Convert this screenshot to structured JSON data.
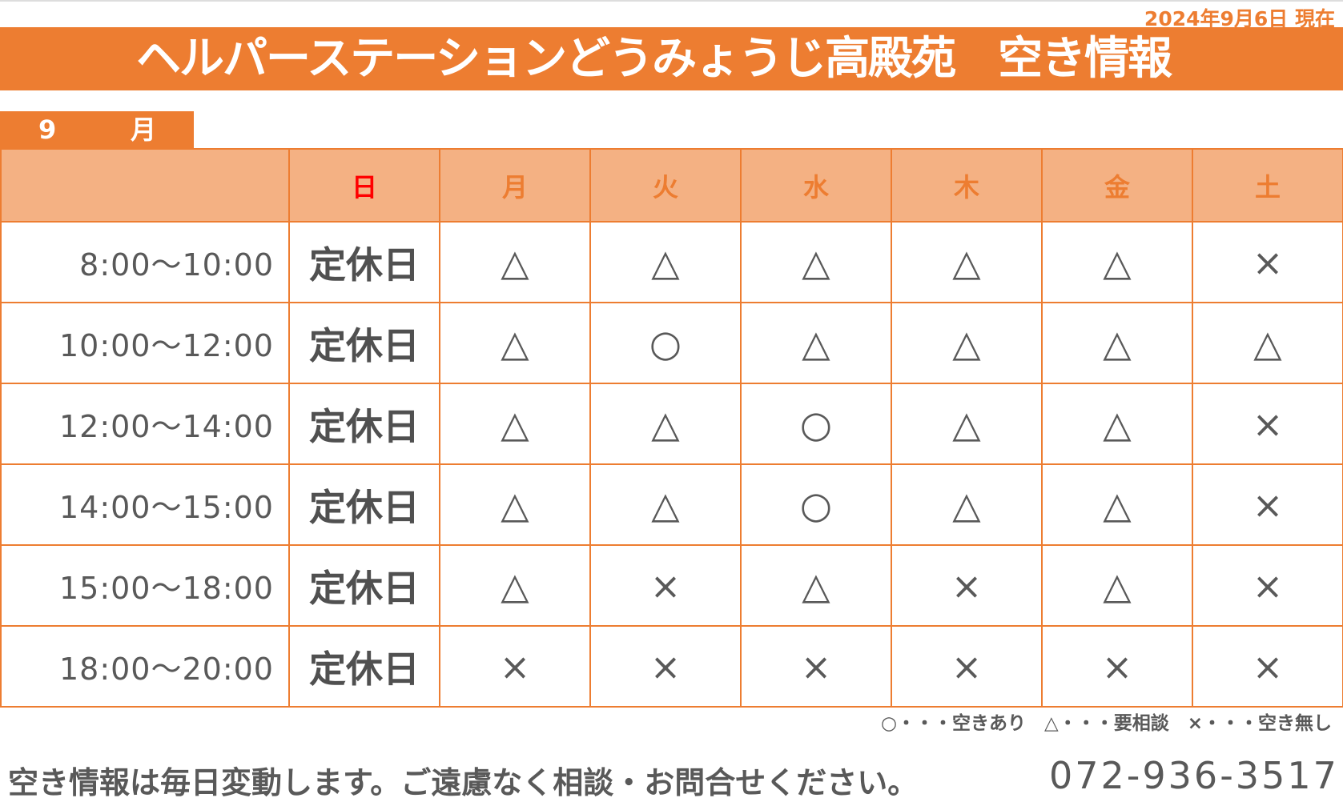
{
  "date_label": "2024年9月6日 現在",
  "title": "ヘルパーステーションどうみょうじ高殿苑　空き情報",
  "month": {
    "number": "9",
    "unit": "月"
  },
  "days": [
    {
      "label": "日",
      "color": "#FF0000"
    },
    {
      "label": "月",
      "color": "#ED7D31"
    },
    {
      "label": "火",
      "color": "#ED7D31"
    },
    {
      "label": "水",
      "color": "#ED7D31"
    },
    {
      "label": "木",
      "color": "#ED7D31"
    },
    {
      "label": "金",
      "color": "#ED7D31"
    },
    {
      "label": "土",
      "color": "#ED7D31"
    }
  ],
  "rows": [
    {
      "time": "8:00～10:00",
      "cells": [
        "定休日",
        "△",
        "△",
        "△",
        "△",
        "△",
        "×"
      ]
    },
    {
      "time": "10:00～12:00",
      "cells": [
        "定休日",
        "△",
        "○",
        "△",
        "△",
        "△",
        "△"
      ]
    },
    {
      "time": "12:00～14:00",
      "cells": [
        "定休日",
        "△",
        "△",
        "○",
        "△",
        "△",
        "×"
      ]
    },
    {
      "time": "14:00～15:00",
      "cells": [
        "定休日",
        "△",
        "△",
        "○",
        "△",
        "△",
        "×"
      ]
    },
    {
      "time": "15:00～18:00",
      "cells": [
        "定休日",
        "△",
        "×",
        "△",
        "×",
        "△",
        "×"
      ]
    },
    {
      "time": "18:00～20:00",
      "cells": [
        "定休日",
        "×",
        "×",
        "×",
        "×",
        "×",
        "×"
      ]
    }
  ],
  "legend": "○・・・空きあり　△・・・要相談　×・・・空き無し",
  "footer_text": "空き情報は毎日変動します。ご遠慮なく相談・お問合せください。",
  "phone": "072-936-3517",
  "colors": {
    "accent": "#ED7D31",
    "header_fill": "#F4B183",
    "text": "#595959",
    "sunday": "#FF0000"
  }
}
